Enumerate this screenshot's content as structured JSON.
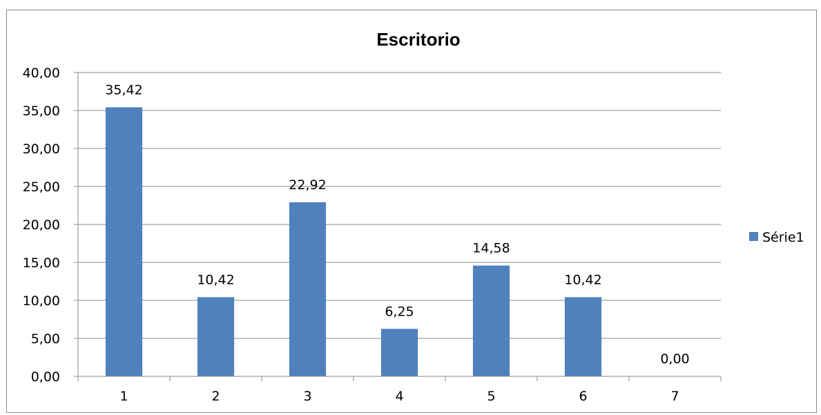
{
  "chart_data": {
    "type": "bar",
    "title": "Escritorio",
    "xlabel": "",
    "ylabel": "",
    "categories": [
      "1",
      "2",
      "3",
      "4",
      "5",
      "6",
      "7"
    ],
    "series": [
      {
        "name": "Série1",
        "values": [
          35.42,
          10.42,
          22.92,
          6.25,
          14.58,
          10.42,
          0.0
        ],
        "value_labels": [
          "35,42",
          "10,42",
          "22,92",
          "6,25",
          "14,58",
          "10,42",
          "0,00"
        ],
        "color": "#4F81BD"
      }
    ],
    "ylim": [
      0,
      40
    ],
    "yticks": [
      0,
      5,
      10,
      15,
      20,
      25,
      30,
      35,
      40
    ],
    "ytick_labels": [
      "0,00",
      "5,00",
      "10,00",
      "15,00",
      "20,00",
      "25,00",
      "30,00",
      "35,00",
      "40,00"
    ],
    "grid": true,
    "legend_position": "right"
  }
}
